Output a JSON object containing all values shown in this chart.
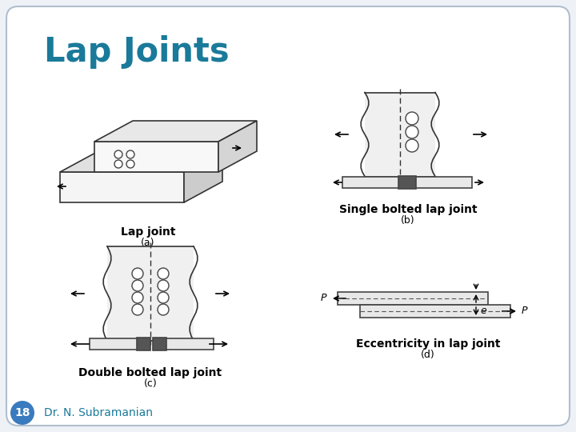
{
  "title": "Lap Joints",
  "title_color": "#1a7a9a",
  "background_color": "#ffffff",
  "slide_bg": "#eef2f7",
  "slide_border_color": "#b0bece",
  "badge_color": "#3a7bbf",
  "badge_number": "18",
  "footer_text": "Dr. N. Subramanian",
  "label_a": "Lap joint",
  "label_a_sub": "(a)",
  "label_b": "Single bolted lap joint",
  "label_b_sub": "(b)",
  "label_c": "Double bolted lap joint",
  "label_c_sub": "(c)",
  "label_d": "Eccentricity in lap joint",
  "label_d_sub": "(d)"
}
